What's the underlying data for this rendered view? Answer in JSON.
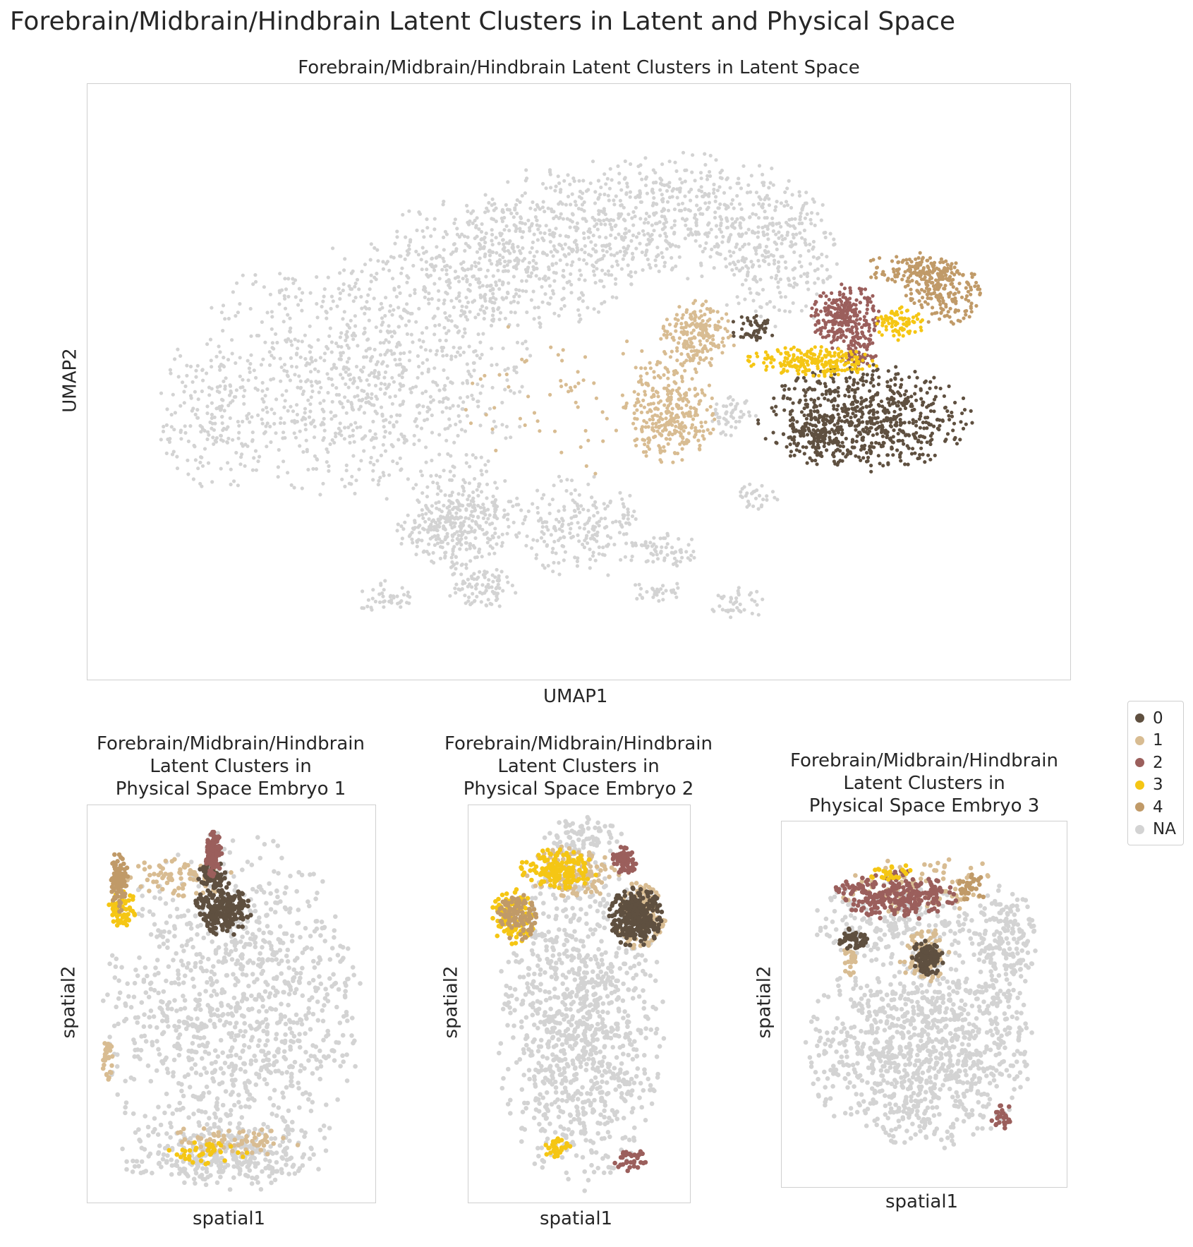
{
  "suptitle": "Forebrain/Midbrain/Hindbrain Latent Clusters in Latent and Physical Space",
  "colors": {
    "0": "#5f5040",
    "1": "#d8bc92",
    "2": "#9b5f5c",
    "3": "#f5c614",
    "4": "#c09a68",
    "NA": "#d3d3d3"
  },
  "legend": {
    "entries": [
      "0",
      "1",
      "2",
      "3",
      "4",
      "NA"
    ]
  },
  "chart_data": [
    {
      "type": "scatter",
      "panel": "umap",
      "title": "Forebrain/Midbrain/Hindbrain Latent Clusters in Latent Space",
      "xlabel": "UMAP1",
      "ylabel": "UMAP2",
      "ticks": "none",
      "grid": false,
      "xlim": [
        0,
        100
      ],
      "ylim": [
        0,
        100
      ],
      "clusters": [
        {
          "label": "NA",
          "regions": [
            {
              "cx": 28,
              "cy": 48,
              "rx": 18,
              "ry": 22,
              "n": 900
            },
            {
              "cx": 42,
              "cy": 30,
              "rx": 14,
              "ry": 12,
              "n": 500
            },
            {
              "cx": 57,
              "cy": 22,
              "rx": 18,
              "ry": 11,
              "n": 650
            },
            {
              "cx": 70,
              "cy": 30,
              "rx": 7,
              "ry": 11,
              "n": 220
            },
            {
              "cx": 13,
              "cy": 55,
              "rx": 6,
              "ry": 14,
              "n": 180
            },
            {
              "cx": 38,
              "cy": 72,
              "rx": 6,
              "ry": 9,
              "n": 220
            },
            {
              "cx": 40,
              "cy": 84,
              "rx": 4,
              "ry": 4,
              "n": 90
            },
            {
              "cx": 50,
              "cy": 74,
              "rx": 8,
              "ry": 9,
              "n": 220
            },
            {
              "cx": 30,
              "cy": 86,
              "rx": 3,
              "ry": 3,
              "n": 40
            },
            {
              "cx": 59,
              "cy": 78,
              "rx": 4,
              "ry": 3,
              "n": 60
            },
            {
              "cx": 66,
              "cy": 87,
              "rx": 3,
              "ry": 3,
              "n": 40
            },
            {
              "cx": 65.5,
              "cy": 55.5,
              "rx": 2.5,
              "ry": 3.5,
              "n": 50
            },
            {
              "cx": 68,
              "cy": 69,
              "rx": 2.5,
              "ry": 2.5,
              "n": 30
            },
            {
              "cx": 37,
              "cy": 75,
              "rx": 6,
              "ry": 6,
              "n": 150
            },
            {
              "cx": 58,
              "cy": 85,
              "rx": 3,
              "ry": 2,
              "n": 30
            }
          ]
        },
        {
          "label": "1",
          "regions": [
            {
              "cx": 59,
              "cy": 55,
              "rx": 5,
              "ry": 9,
              "n": 320
            },
            {
              "cx": 62,
              "cy": 42,
              "rx": 4,
              "ry": 6,
              "n": 200
            },
            {
              "cx": 48,
              "cy": 52,
              "rx": 10,
              "ry": 15,
              "n": 60
            }
          ]
        },
        {
          "label": "0",
          "regions": [
            {
              "cx": 79,
              "cy": 56,
              "rx": 11,
              "ry": 9,
              "n": 700
            },
            {
              "cx": 73.5,
              "cy": 59,
              "rx": 3,
              "ry": 4,
              "n": 80
            },
            {
              "cx": 67.5,
              "cy": 41,
              "rx": 2.5,
              "ry": 2.5,
              "n": 50
            }
          ]
        },
        {
          "label": "2",
          "regions": [
            {
              "cx": 77,
              "cy": 39,
              "rx": 3.5,
              "ry": 6,
              "n": 280
            },
            {
              "cx": 78.5,
              "cy": 45,
              "rx": 2,
              "ry": 3,
              "n": 60
            }
          ]
        },
        {
          "label": "3",
          "regions": [
            {
              "cx": 73.5,
              "cy": 46.5,
              "rx": 7,
              "ry": 2.5,
              "n": 220
            },
            {
              "cx": 82.5,
              "cy": 40,
              "rx": 2.5,
              "ry": 3,
              "n": 80
            }
          ]
        },
        {
          "label": "4",
          "regions": [
            {
              "cx": 87,
              "cy": 35,
              "rx": 4,
              "ry": 5.5,
              "n": 200
            },
            {
              "cx": 84,
              "cy": 31,
              "rx": 5,
              "ry": 3,
              "n": 120
            }
          ]
        }
      ]
    },
    {
      "type": "scatter",
      "panel": "embryo1",
      "title": "Forebrain/Midbrain/Hindbrain\nLatent Clusters in\nPhysical Space Embryo 1",
      "xlabel": "spatial1",
      "ylabel": "spatial2",
      "ticks": "none",
      "grid": false,
      "xlim": [
        0,
        100
      ],
      "ylim": [
        0,
        100
      ],
      "clusters": [
        {
          "label": "NA",
          "regions": [
            {
              "cx": 50,
              "cy": 52,
              "rx": 45,
              "ry": 46,
              "n": 1100
            },
            {
              "cx": 47,
              "cy": 88,
              "rx": 38,
              "ry": 8,
              "n": 250
            }
          ]
        },
        {
          "label": "1",
          "regions": [
            {
              "cx": 33,
              "cy": 18,
              "rx": 20,
              "ry": 5,
              "n": 80
            },
            {
              "cx": 50,
              "cy": 84,
              "rx": 26,
              "ry": 4,
              "n": 70
            },
            {
              "cx": 7,
              "cy": 63,
              "rx": 2,
              "ry": 7,
              "n": 30
            }
          ]
        },
        {
          "label": "0",
          "regions": [
            {
              "cx": 47,
              "cy": 26,
              "rx": 10,
              "ry": 7,
              "n": 230
            },
            {
              "cx": 43,
              "cy": 17,
              "rx": 5,
              "ry": 4,
              "n": 70
            }
          ]
        },
        {
          "label": "2",
          "regions": [
            {
              "cx": 43.5,
              "cy": 12,
              "rx": 3,
              "ry": 6,
              "n": 110
            }
          ]
        },
        {
          "label": "3",
          "regions": [
            {
              "cx": 12,
              "cy": 26,
              "rx": 5,
              "ry": 5,
              "n": 60
            },
            {
              "cx": 41,
              "cy": 87,
              "rx": 15,
              "ry": 3,
              "n": 40
            }
          ]
        },
        {
          "label": "4",
          "regions": [
            {
              "cx": 11,
              "cy": 19,
              "rx": 3,
              "ry": 8,
              "n": 90
            }
          ]
        }
      ]
    },
    {
      "type": "scatter",
      "panel": "embryo2",
      "title": "Forebrain/Midbrain/Hindbrain\nLatent Clusters in\nPhysical Space Embryo 2",
      "xlabel": "spatial1",
      "ylabel": "spatial2",
      "ticks": "none",
      "grid": false,
      "xlim": [
        0,
        100
      ],
      "ylim": [
        0,
        100
      ],
      "clusters": [
        {
          "label": "NA",
          "regions": [
            {
              "cx": 50,
              "cy": 55,
              "rx": 38,
              "ry": 42,
              "n": 1000
            },
            {
              "cx": 52,
              "cy": 8,
              "rx": 18,
              "ry": 5,
              "n": 80
            }
          ]
        },
        {
          "label": "1",
          "regions": [
            {
              "cx": 48,
              "cy": 17,
              "rx": 22,
              "ry": 7,
              "n": 120
            },
            {
              "cx": 77,
              "cy": 28,
              "rx": 12,
              "ry": 9,
              "n": 140
            }
          ]
        },
        {
          "label": "0",
          "regions": [
            {
              "cx": 75,
              "cy": 28,
              "rx": 12,
              "ry": 8,
              "n": 300
            }
          ]
        },
        {
          "label": "2",
          "regions": [
            {
              "cx": 70,
              "cy": 14,
              "rx": 6,
              "ry": 4,
              "n": 70
            },
            {
              "cx": 73,
              "cy": 89,
              "rx": 8,
              "ry": 3,
              "n": 35
            }
          ]
        },
        {
          "label": "3",
          "regions": [
            {
              "cx": 40,
              "cy": 16,
              "rx": 18,
              "ry": 5,
              "n": 160
            },
            {
              "cx": 20,
              "cy": 28,
              "rx": 10,
              "ry": 7,
              "n": 120
            },
            {
              "cx": 40,
              "cy": 86,
              "rx": 6,
              "ry": 3,
              "n": 30
            }
          ]
        },
        {
          "label": "4",
          "regions": [
            {
              "cx": 22,
              "cy": 28,
              "rx": 9,
              "ry": 6,
              "n": 110
            }
          ]
        }
      ]
    },
    {
      "type": "scatter",
      "panel": "embryo3",
      "title": "Forebrain/Midbrain/Hindbrain\nLatent Clusters in\nPhysical Space Embryo 3",
      "xlabel": "spatial1",
      "ylabel": "spatial2",
      "ticks": "none",
      "grid": false,
      "xlim": [
        0,
        100
      ],
      "ylim": [
        0,
        100
      ],
      "clusters": [
        {
          "label": "NA",
          "regions": [
            {
              "cx": 48,
              "cy": 62,
              "rx": 40,
              "ry": 28,
              "n": 1000
            },
            {
              "cx": 78,
              "cy": 35,
              "rx": 12,
              "ry": 18,
              "n": 200
            },
            {
              "cx": 40,
              "cy": 27,
              "rx": 30,
              "ry": 12,
              "n": 200
            }
          ]
        },
        {
          "label": "1",
          "regions": [
            {
              "cx": 48,
              "cy": 17,
              "rx": 30,
              "ry": 9,
              "n": 90
            },
            {
              "cx": 50,
              "cy": 37,
              "rx": 9,
              "ry": 8,
              "n": 90
            },
            {
              "cx": 24,
              "cy": 38,
              "rx": 3,
              "ry": 4,
              "n": 20
            }
          ]
        },
        {
          "label": "0",
          "regions": [
            {
              "cx": 51,
              "cy": 37,
              "rx": 6,
              "ry": 5,
              "n": 110
            },
            {
              "cx": 25,
              "cy": 32,
              "rx": 6,
              "ry": 3,
              "n": 50
            }
          ]
        },
        {
          "label": "2",
          "regions": [
            {
              "cx": 40,
              "cy": 20,
              "rx": 22,
              "ry": 7,
              "n": 260
            },
            {
              "cx": 77,
              "cy": 80,
              "rx": 4,
              "ry": 4,
              "n": 25
            }
          ]
        },
        {
          "label": "3",
          "regions": [
            {
              "cx": 38,
              "cy": 14,
              "rx": 8,
              "ry": 3,
              "n": 25
            }
          ]
        },
        {
          "label": "4",
          "regions": [
            {
              "cx": 66,
              "cy": 18,
              "rx": 6,
              "ry": 4,
              "n": 35
            }
          ]
        }
      ]
    }
  ]
}
